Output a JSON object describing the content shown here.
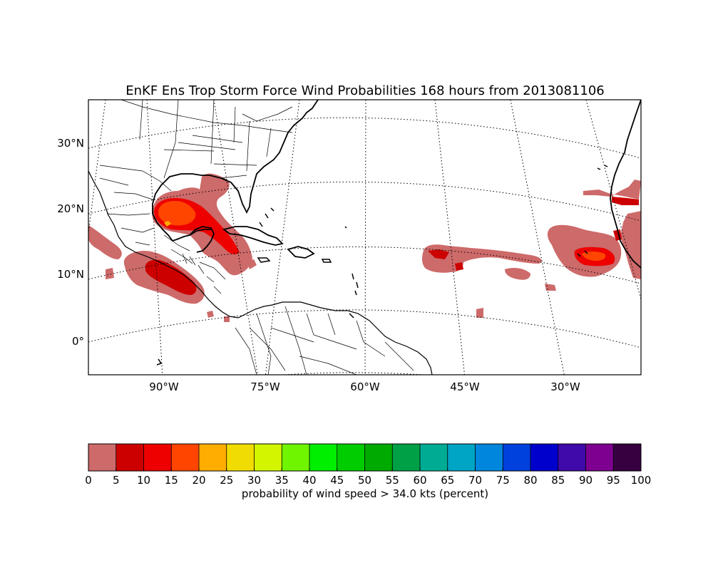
{
  "title": "EnKF Ens Trop Storm Force Wind Probabilities 168 hours from 2013081106",
  "map": {
    "lat_labels": [
      "30°N",
      "20°N",
      "10°N",
      "0°"
    ],
    "lon_labels": [
      "90°W",
      "75°W",
      "60°W",
      "45°W",
      "30°W"
    ],
    "land_color": "#ffffff",
    "coastline_color": "#000000",
    "gridline_style": "dotted",
    "probability_regions": [
      {
        "name": "gulf-of-mexico-system",
        "max_bin": "15-20"
      },
      {
        "name": "eastern-pacific-system",
        "max_bin": "10-15"
      },
      {
        "name": "central-atlantic-system",
        "max_bin": "10-15"
      },
      {
        "name": "eastern-atlantic-system",
        "max_bin": "15-20"
      }
    ]
  },
  "colorbar": {
    "ticks": [
      "0",
      "5",
      "10",
      "15",
      "20",
      "25",
      "30",
      "35",
      "40",
      "45",
      "50",
      "55",
      "60",
      "65",
      "70",
      "75",
      "80",
      "85",
      "90",
      "95",
      "100"
    ],
    "colors": [
      "#cd6a6a",
      "#cd0000",
      "#ee0000",
      "#ff4500",
      "#ffad00",
      "#f0dc00",
      "#d4f500",
      "#6ff500",
      "#00ee00",
      "#00cd00",
      "#00aa00",
      "#00a046",
      "#00ab94",
      "#00a4c4",
      "#0087dd",
      "#0040dd",
      "#0000cd",
      "#3f0aaa",
      "#7d0090",
      "#360040"
    ],
    "label": "probability of wind speed > 34.0 kts (percent)"
  }
}
